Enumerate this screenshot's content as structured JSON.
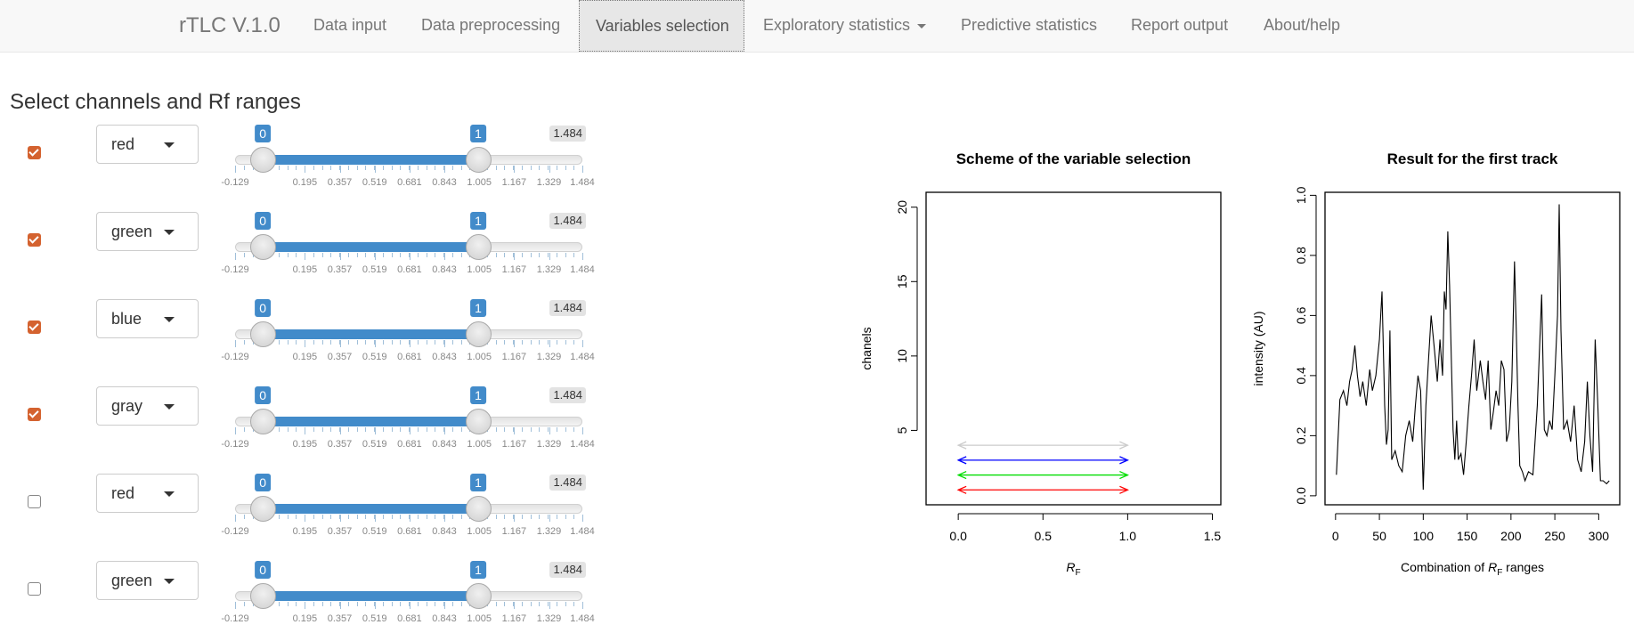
{
  "navbar": {
    "brand": "rTLC V.1.0",
    "items": [
      {
        "label": "Data input",
        "active": false,
        "dropdown": false
      },
      {
        "label": "Data preprocessing",
        "active": false,
        "dropdown": false
      },
      {
        "label": "Variables selection",
        "active": true,
        "dropdown": false
      },
      {
        "label": "Exploratory statistics",
        "active": false,
        "dropdown": true
      },
      {
        "label": "Predictive statistics",
        "active": false,
        "dropdown": false
      },
      {
        "label": "Report output",
        "active": false,
        "dropdown": false
      },
      {
        "label": "About/help",
        "active": false,
        "dropdown": false
      }
    ]
  },
  "panel": {
    "title": "Select channels and Rf ranges",
    "slider": {
      "min": -0.129,
      "max": 1.484,
      "max_label": "1.484",
      "tick_labels": [
        "-0.129",
        "0.195",
        "0.357",
        "0.519",
        "0.681",
        "0.843",
        "1.005",
        "1.167",
        "1.329",
        "1.484"
      ],
      "tick_values": [
        -0.129,
        0.195,
        0.357,
        0.519,
        0.681,
        0.843,
        1.005,
        1.167,
        1.329,
        1.484
      ]
    },
    "rows": [
      {
        "checked": true,
        "channel": "red",
        "low": 0,
        "high": 1
      },
      {
        "checked": true,
        "channel": "green",
        "low": 0,
        "high": 1
      },
      {
        "checked": true,
        "channel": "blue",
        "low": 0,
        "high": 1
      },
      {
        "checked": true,
        "channel": "gray",
        "low": 0,
        "high": 1
      },
      {
        "checked": false,
        "channel": "red",
        "low": 0,
        "high": 1
      },
      {
        "checked": false,
        "channel": "green",
        "low": 0,
        "high": 1
      }
    ]
  },
  "colors": {
    "checkbox_on": "#d4622f",
    "slider_fill": "#428bca",
    "arrow_red": "#ff0000",
    "arrow_green": "#00dd00",
    "arrow_blue": "#0000ff",
    "arrow_gray": "#cccccc"
  },
  "chart_data": [
    {
      "type": "line",
      "title": "Scheme of the variable selection",
      "xlabel": "R",
      "xlabel_sub": "F",
      "ylabel": "chanels",
      "xlim": [
        -0.19,
        1.55
      ],
      "ylim": [
        0,
        21
      ],
      "xticks": [
        0.0,
        0.5,
        1.0,
        1.5
      ],
      "xtick_labels": [
        "0.0",
        "0.5",
        "1.0",
        "1.5"
      ],
      "yticks": [
        5,
        10,
        15,
        20
      ],
      "ytick_labels": [
        "5",
        "10",
        "15",
        "20"
      ],
      "segments": [
        {
          "y": 1,
          "x0": 0,
          "x1": 1,
          "color": "#ff0000"
        },
        {
          "y": 2,
          "x0": 0,
          "x1": 1,
          "color": "#00dd00"
        },
        {
          "y": 3,
          "x0": 0,
          "x1": 1,
          "color": "#0000ff"
        },
        {
          "y": 4,
          "x0": 0,
          "x1": 1,
          "color": "#cccccc"
        }
      ]
    },
    {
      "type": "line",
      "title": "Result for the first track",
      "xlabel_pre": "Combination of ",
      "xlabel_r": "R",
      "xlabel_sub": "F",
      "xlabel_post": " ranges",
      "ylabel": "intensity (AU)",
      "xlim": [
        -12,
        324
      ],
      "ylim": [
        -0.03,
        1.01
      ],
      "xticks": [
        0,
        50,
        100,
        150,
        200,
        250,
        300
      ],
      "xtick_labels": [
        "0",
        "50",
        "100",
        "150",
        "200",
        "250",
        "300"
      ],
      "yticks": [
        0.0,
        0.2,
        0.4,
        0.6,
        0.8,
        1.0
      ],
      "ytick_labels": [
        "0.0",
        "0.2",
        "0.4",
        "0.6",
        "0.8",
        "1.0"
      ],
      "x": [
        1,
        5,
        9,
        13,
        16,
        19,
        22,
        25,
        28,
        31,
        35,
        39,
        42,
        46,
        50,
        53,
        56,
        58,
        60,
        62,
        64,
        68,
        72,
        76,
        80,
        84,
        88,
        91,
        94,
        97,
        100,
        103,
        106,
        109,
        113,
        116,
        119,
        122,
        124,
        126,
        128,
        130,
        132,
        134,
        136,
        138,
        140,
        143,
        146,
        149,
        152,
        155,
        158,
        161,
        165,
        168,
        171,
        174,
        177,
        180,
        183,
        186,
        189,
        192,
        195,
        198,
        201,
        204,
        206,
        208,
        210,
        213,
        216,
        220,
        225,
        230,
        235,
        238,
        241,
        244,
        247,
        250,
        253,
        255,
        257,
        260,
        264,
        268,
        272,
        276,
        280,
        284,
        287,
        290,
        293,
        296,
        299,
        302,
        305,
        309,
        312
      ],
      "y": [
        0.07,
        0.32,
        0.35,
        0.3,
        0.38,
        0.42,
        0.5,
        0.4,
        0.33,
        0.38,
        0.3,
        0.42,
        0.35,
        0.4,
        0.52,
        0.68,
        0.3,
        0.17,
        0.22,
        0.55,
        0.12,
        0.15,
        0.1,
        0.08,
        0.2,
        0.25,
        0.18,
        0.3,
        0.4,
        0.35,
        0.02,
        0.3,
        0.45,
        0.6,
        0.48,
        0.38,
        0.52,
        0.4,
        0.68,
        0.62,
        0.88,
        0.7,
        0.45,
        0.22,
        0.12,
        0.25,
        0.12,
        0.14,
        0.07,
        0.18,
        0.3,
        0.4,
        0.52,
        0.35,
        0.45,
        0.38,
        0.32,
        0.45,
        0.22,
        0.28,
        0.35,
        0.3,
        0.45,
        0.42,
        0.18,
        0.22,
        0.38,
        0.78,
        0.55,
        0.3,
        0.1,
        0.08,
        0.05,
        0.08,
        0.07,
        0.3,
        0.67,
        0.22,
        0.2,
        0.25,
        0.22,
        0.4,
        0.6,
        0.97,
        0.55,
        0.22,
        0.25,
        0.18,
        0.3,
        0.12,
        0.08,
        0.18,
        0.38,
        0.2,
        0.08,
        0.52,
        0.3,
        0.05,
        0.05,
        0.04,
        0.05
      ]
    }
  ]
}
